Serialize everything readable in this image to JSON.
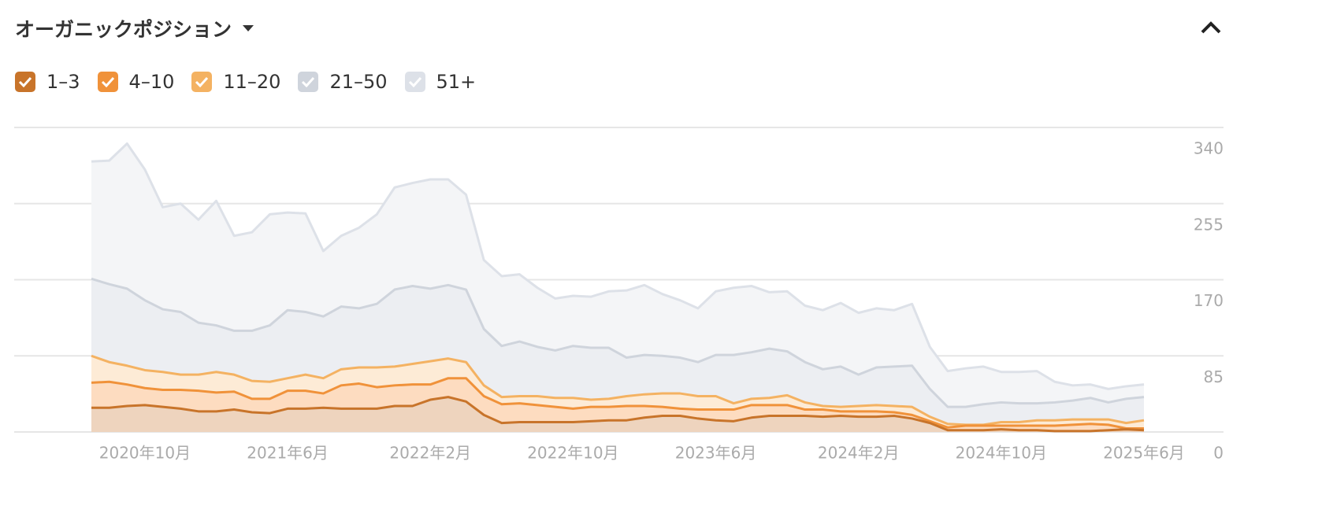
{
  "chart_data": {
    "type": "stacked-area",
    "title": "オーガニックポジション",
    "categories": [
      null,
      null,
      null,
      "2020年10月",
      null,
      null,
      null,
      null,
      null,
      null,
      null,
      "2021年6月",
      null,
      null,
      null,
      null,
      null,
      null,
      null,
      "2022年2月",
      null,
      null,
      null,
      null,
      null,
      null,
      null,
      "2022年10月",
      null,
      null,
      null,
      null,
      null,
      null,
      null,
      "2023年6月",
      null,
      null,
      null,
      null,
      null,
      null,
      null,
      "2024年2月",
      null,
      null,
      null,
      null,
      null,
      null,
      null,
      "2024年10月",
      null,
      null,
      null,
      null,
      null,
      null,
      null,
      "2025年6月"
    ],
    "ylim": [
      0,
      340
    ],
    "yticks": [
      0,
      85,
      170,
      255,
      340
    ],
    "grid": true,
    "series": [
      {
        "name": "1–3",
        "color": "#c8742a",
        "fill": "#eed4be",
        "values": [
          27,
          27,
          29,
          30,
          28,
          26,
          23,
          23,
          25,
          22,
          21,
          26,
          26,
          27,
          26,
          26,
          26,
          29,
          29,
          36,
          39,
          34,
          19,
          10,
          11,
          11,
          11,
          11,
          12,
          13,
          13,
          16,
          18,
          18,
          15,
          13,
          12,
          16,
          18,
          18,
          18,
          17,
          18,
          17,
          17,
          18,
          15,
          10,
          2,
          2,
          2,
          3,
          2,
          2,
          1,
          1,
          1,
          2,
          3,
          2
        ]
      },
      {
        "name": "4–10",
        "color": "#f0923a",
        "fill": "#fddcc0",
        "values": [
          28,
          29,
          24,
          19,
          19,
          21,
          23,
          21,
          20,
          15,
          16,
          20,
          20,
          16,
          26,
          28,
          24,
          23,
          24,
          17,
          21,
          26,
          21,
          21,
          21,
          19,
          17,
          15,
          16,
          15,
          16,
          13,
          10,
          8,
          10,
          12,
          13,
          14,
          12,
          12,
          7,
          8,
          5,
          6,
          6,
          4,
          4,
          2,
          3,
          5,
          5,
          4,
          5,
          5,
          6,
          7,
          8,
          6,
          1,
          2
        ]
      },
      {
        "name": "11–20",
        "color": "#f4b262",
        "fill": "#fdebd6",
        "values": [
          30,
          22,
          21,
          20,
          20,
          17,
          18,
          23,
          19,
          20,
          19,
          14,
          18,
          17,
          18,
          18,
          22,
          21,
          23,
          26,
          22,
          18,
          12,
          8,
          8,
          10,
          10,
          12,
          8,
          9,
          11,
          13,
          15,
          17,
          15,
          15,
          7,
          7,
          8,
          11,
          8,
          4,
          5,
          6,
          7,
          7,
          9,
          5,
          4,
          1,
          1,
          4,
          4,
          6,
          6,
          6,
          5,
          6,
          6,
          9
        ]
      },
      {
        "name": "21–50",
        "color": "#cfd4dc",
        "fill": "#eceef2",
        "values": [
          86,
          87,
          86,
          78,
          70,
          70,
          58,
          52,
          49,
          56,
          63,
          76,
          70,
          69,
          70,
          66,
          71,
          86,
          87,
          81,
          82,
          81,
          63,
          57,
          61,
          55,
          53,
          58,
          58,
          57,
          43,
          44,
          42,
          40,
          38,
          46,
          54,
          52,
          55,
          49,
          45,
          41,
          45,
          35,
          42,
          44,
          46,
          31,
          19,
          20,
          23,
          22,
          21,
          19,
          20,
          21,
          24,
          19,
          27,
          26
        ]
      },
      {
        "name": "51+",
        "color": "#dde1e8",
        "fill": "#f4f5f7",
        "values": [
          131,
          138,
          162,
          146,
          114,
          121,
          115,
          139,
          106,
          110,
          124,
          109,
          110,
          73,
          79,
          90,
          100,
          114,
          115,
          122,
          118,
          106,
          77,
          78,
          75,
          66,
          58,
          56,
          57,
          63,
          75,
          78,
          69,
          64,
          60,
          71,
          75,
          74,
          63,
          67,
          63,
          66,
          71,
          69,
          66,
          63,
          69,
          47,
          40,
          43,
          42,
          34,
          35,
          36,
          23,
          17,
          15,
          15,
          14,
          14
        ]
      }
    ]
  }
}
